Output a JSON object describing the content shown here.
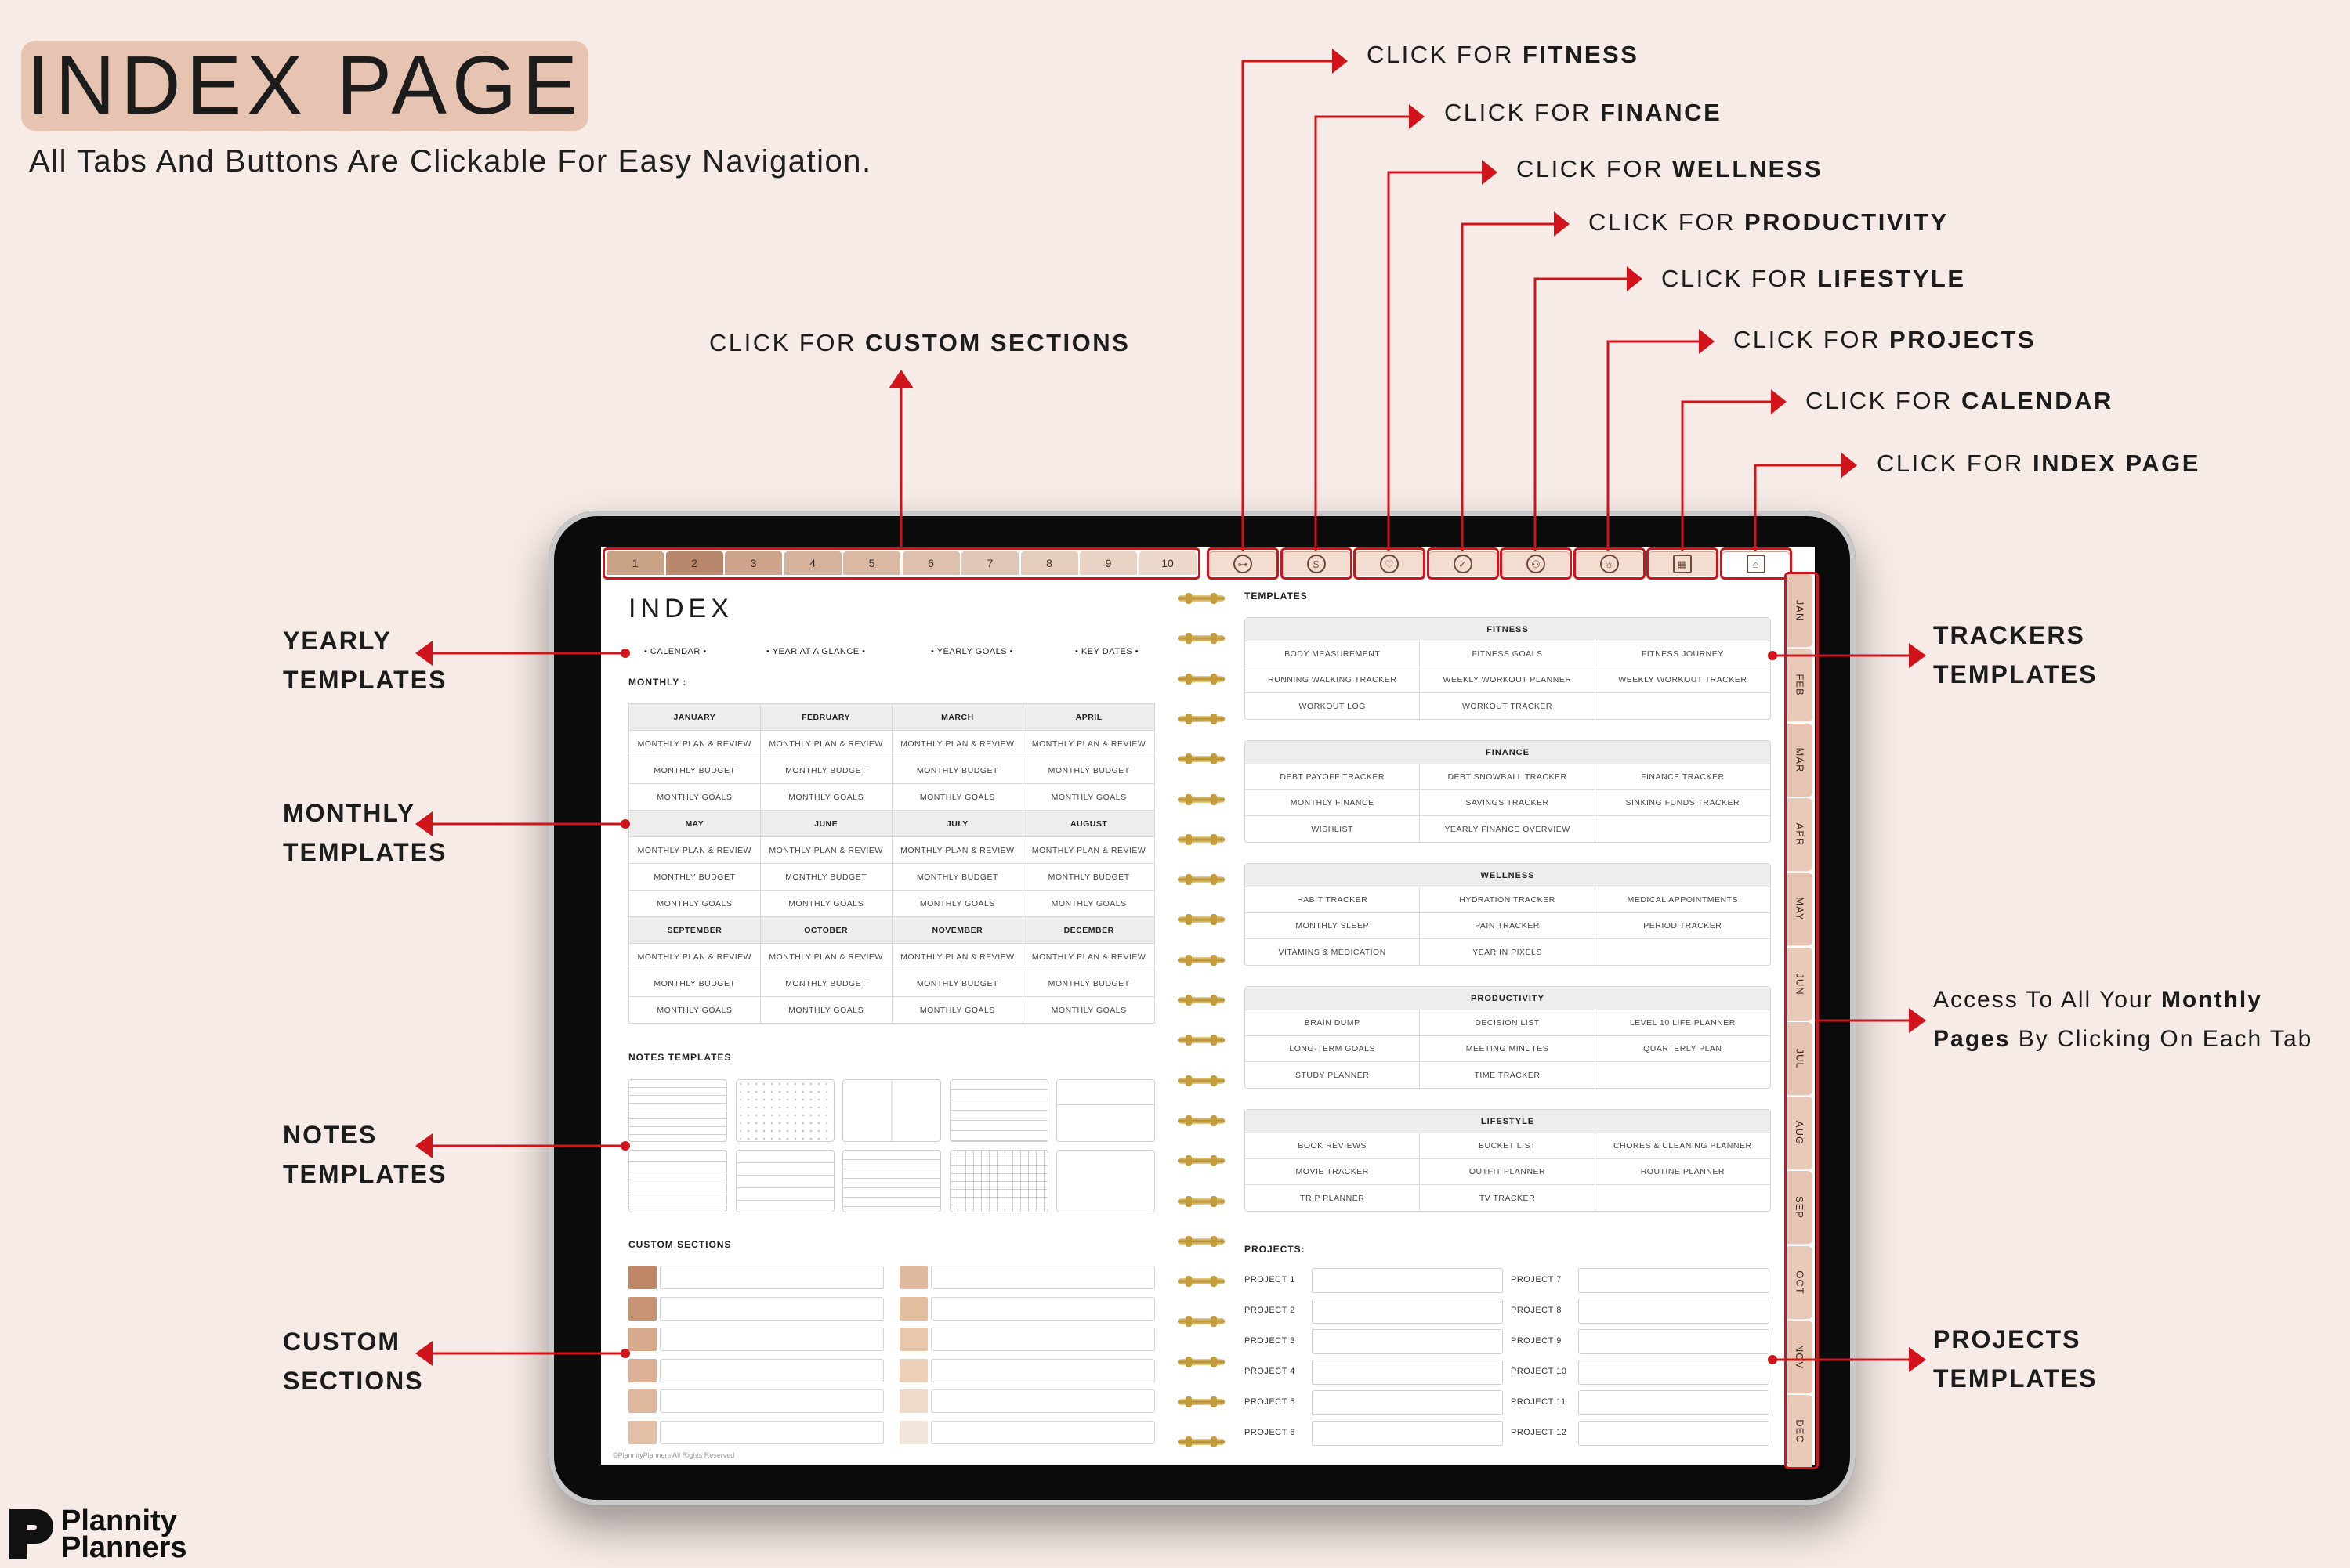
{
  "header": {
    "title": "INDEX PAGE",
    "subtitle": "All Tabs And Buttons Are Clickable For Easy Navigation."
  },
  "callouts": {
    "fitness": {
      "prefix": "CLICK FOR ",
      "bold": "FITNESS"
    },
    "finance": {
      "prefix": "CLICK FOR ",
      "bold": "FINANCE"
    },
    "wellness": {
      "prefix": "CLICK FOR ",
      "bold": "WELLNESS"
    },
    "productivity": {
      "prefix": "CLICK FOR ",
      "bold": "PRODUCTIVITY"
    },
    "lifestyle": {
      "prefix": "CLICK FOR ",
      "bold": "LIFESTYLE"
    },
    "projects": {
      "prefix": "CLICK FOR ",
      "bold": "PROJECTS"
    },
    "calendar": {
      "prefix": "CLICK FOR ",
      "bold": "CALENDAR"
    },
    "index": {
      "prefix": "CLICK FOR ",
      "bold": "INDEX PAGE"
    },
    "custom": {
      "prefix": "CLICK FOR ",
      "bold": "CUSTOM SECTIONS"
    }
  },
  "left_labels": {
    "yearly": [
      "YEARLY",
      "TEMPLATES"
    ],
    "monthly": [
      "MONTHLY",
      "TEMPLATES"
    ],
    "notes": [
      "NOTES",
      "TEMPLATES"
    ],
    "custom": [
      "CUSTOM",
      "SECTIONS"
    ]
  },
  "right_labels": {
    "trackers": [
      "TRACKERS",
      "TEMPLATES"
    ],
    "months_note": {
      "l1a": "Access To All Your ",
      "l1b": "Monthly",
      "l2a": "Pages",
      "l2b": " By Clicking On Each Tab"
    },
    "projects": [
      "PROJECTS",
      "TEMPLATES"
    ]
  },
  "tabs": {
    "numbers": [
      "1",
      "2",
      "3",
      "4",
      "5",
      "6",
      "7",
      "8",
      "9",
      "10"
    ],
    "icons": [
      "dumbbell-icon",
      "dollar-icon",
      "heart-icon",
      "check-circle-icon",
      "person-icon",
      "bulb-icon",
      "calendar-icon",
      "home-icon"
    ],
    "months": [
      "JAN",
      "FEB",
      "MAR",
      "APR",
      "MAY",
      "JUN",
      "JUL",
      "AUG",
      "SEP",
      "OCT",
      "NOV",
      "DEC"
    ]
  },
  "index_page": {
    "heading": "INDEX",
    "yearly_links": [
      "• CALENDAR •",
      "• YEAR AT A GLANCE •",
      "• YEARLY GOALS •",
      "• KEY DATES •"
    ],
    "monthly_label": "MONTHLY :",
    "months": [
      [
        "JANUARY",
        "FEBRUARY",
        "MARCH",
        "APRIL"
      ],
      [
        "MAY",
        "JUNE",
        "JULY",
        "AUGUST"
      ],
      [
        "SEPTEMBER",
        "OCTOBER",
        "NOVEMBER",
        "DECEMBER"
      ]
    ],
    "month_items": [
      "MONTHLY PLAN & REVIEW",
      "MONTHLY BUDGET",
      "MONTHLY GOALS"
    ],
    "notes_label": "NOTES TEMPLATES",
    "custom_label": "CUSTOM SECTIONS",
    "copyright": "©PlannityPlanners All Rights Reserved"
  },
  "templates": {
    "heading": "TEMPLATES",
    "sections": [
      {
        "title": "FITNESS",
        "items": [
          "BODY MEASUREMENT",
          "FITNESS GOALS",
          "FITNESS JOURNEY",
          "RUNNING WALKING TRACKER",
          "WEEKLY WORKOUT PLANNER",
          "WEEKLY WORKOUT TRACKER",
          "WORKOUT LOG",
          "WORKOUT TRACKER",
          ""
        ]
      },
      {
        "title": "FINANCE",
        "items": [
          "DEBT PAYOFF TRACKER",
          "DEBT SNOWBALL TRACKER",
          "FINANCE TRACKER",
          "MONTHLY FINANCE",
          "SAVINGS TRACKER",
          "SINKING FUNDS TRACKER",
          "WISHLIST",
          "YEARLY FINANCE OVERVIEW",
          ""
        ]
      },
      {
        "title": "WELLNESS",
        "items": [
          "HABIT TRACKER",
          "HYDRATION TRACKER",
          "MEDICAL APPOINTMENTS",
          "MONTHLY SLEEP",
          "PAIN TRACKER",
          "PERIOD TRACKER",
          "VITAMINS & MEDICATION",
          "YEAR IN PIXELS",
          ""
        ]
      },
      {
        "title": "PRODUCTIVITY",
        "items": [
          "BRAIN DUMP",
          "DECISION LIST",
          "LEVEL 10 LIFE PLANNER",
          "LONG-TERM GOALS",
          "MEETING MINUTES",
          "QUARTERLY PLAN",
          "STUDY PLANNER",
          "TIME TRACKER",
          ""
        ]
      },
      {
        "title": "LIFESTYLE",
        "items": [
          "BOOK REVIEWS",
          "BUCKET LIST",
          "CHORES & CLEANING PLANNER",
          "MOVIE TRACKER",
          "OUTFIT PLANNER",
          "ROUTINE PLANNER",
          "TRIP PLANNER",
          "TV TRACKER",
          ""
        ]
      }
    ],
    "projects_label": "PROJECTS:",
    "projects": [
      "PROJECT 1",
      "PROJECT 2",
      "PROJECT 3",
      "PROJECT 4",
      "PROJECT 5",
      "PROJECT 6",
      "PROJECT 7",
      "PROJECT 8",
      "PROJECT 9",
      "PROJECT 10",
      "PROJECT 11",
      "PROJECT 12"
    ]
  },
  "colors": {
    "background": "#f6ebe6",
    "accent_red": "#d1141b",
    "tab_shades": [
      "#c9a184",
      "#b8866a",
      "#cda38b",
      "#d5b29d",
      "#d9b9a4",
      "#ddc0ad",
      "#e1c7b5",
      "#e5cdbd",
      "#e8d3c4",
      "#ecd9cc"
    ],
    "custom_left": [
      "#c08766",
      "#c99474",
      "#d6a98c",
      "#dcb094",
      "#dfb79d",
      "#e2bfa7"
    ],
    "custom_right": [
      "#e0b99e",
      "#e3be9f",
      "#e8c7ac",
      "#ebcfb8",
      "#efdac9",
      "#f3e5d9"
    ]
  },
  "brand": {
    "line1": "Plannity",
    "line2": "Planners"
  }
}
